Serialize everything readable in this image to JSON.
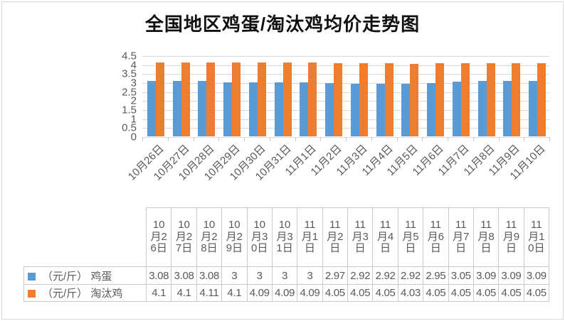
{
  "title": "全国地区鸡蛋/淘汰鸡均价走势图",
  "colors": {
    "egg_series": "#5B9BD5",
    "chicken_series": "#ED7D31",
    "gridline": "#D9D9D9",
    "axis_text": "#595959",
    "table_border": "#C9C9C9",
    "title_text": "#111111"
  },
  "chart_data": {
    "type": "bar",
    "title": "全国地区鸡蛋/淘汰鸡均价走势图",
    "categories": [
      "10月26日",
      "10月27日",
      "10月28日",
      "10月29日",
      "10月30日",
      "10月31日",
      "11月1日",
      "11月2日",
      "11月3日",
      "11月4日",
      "11月5日",
      "11月6日",
      "11月7日",
      "11月8日",
      "11月9日",
      "11月10日"
    ],
    "series": [
      {
        "name": "（元/斤） 鸡蛋",
        "key": "egg",
        "color": "#5B9BD5",
        "values": [
          3.08,
          3.08,
          3.08,
          3,
          3,
          3,
          3,
          2.97,
          2.92,
          2.92,
          2.92,
          2.95,
          3.05,
          3.09,
          3.09,
          3.09
        ]
      },
      {
        "name": "（元/斤） 淘汰鸡",
        "key": "chicken",
        "color": "#ED7D31",
        "values": [
          4.1,
          4.1,
          4.11,
          4.1,
          4.09,
          4.09,
          4.09,
          4.05,
          4.05,
          4.05,
          4.03,
          4.05,
          4.05,
          4.05,
          4.05,
          4.05
        ]
      }
    ],
    "xlabel": "",
    "ylabel": "",
    "ylim": [
      0,
      4.5
    ],
    "yticks": [
      0,
      0.5,
      1,
      1.5,
      2,
      2.5,
      3,
      3.5,
      4,
      4.5
    ],
    "grid": true,
    "x_axis_label_rotation": -45,
    "legend_position": "data-table-left",
    "data_table_shown": true
  }
}
